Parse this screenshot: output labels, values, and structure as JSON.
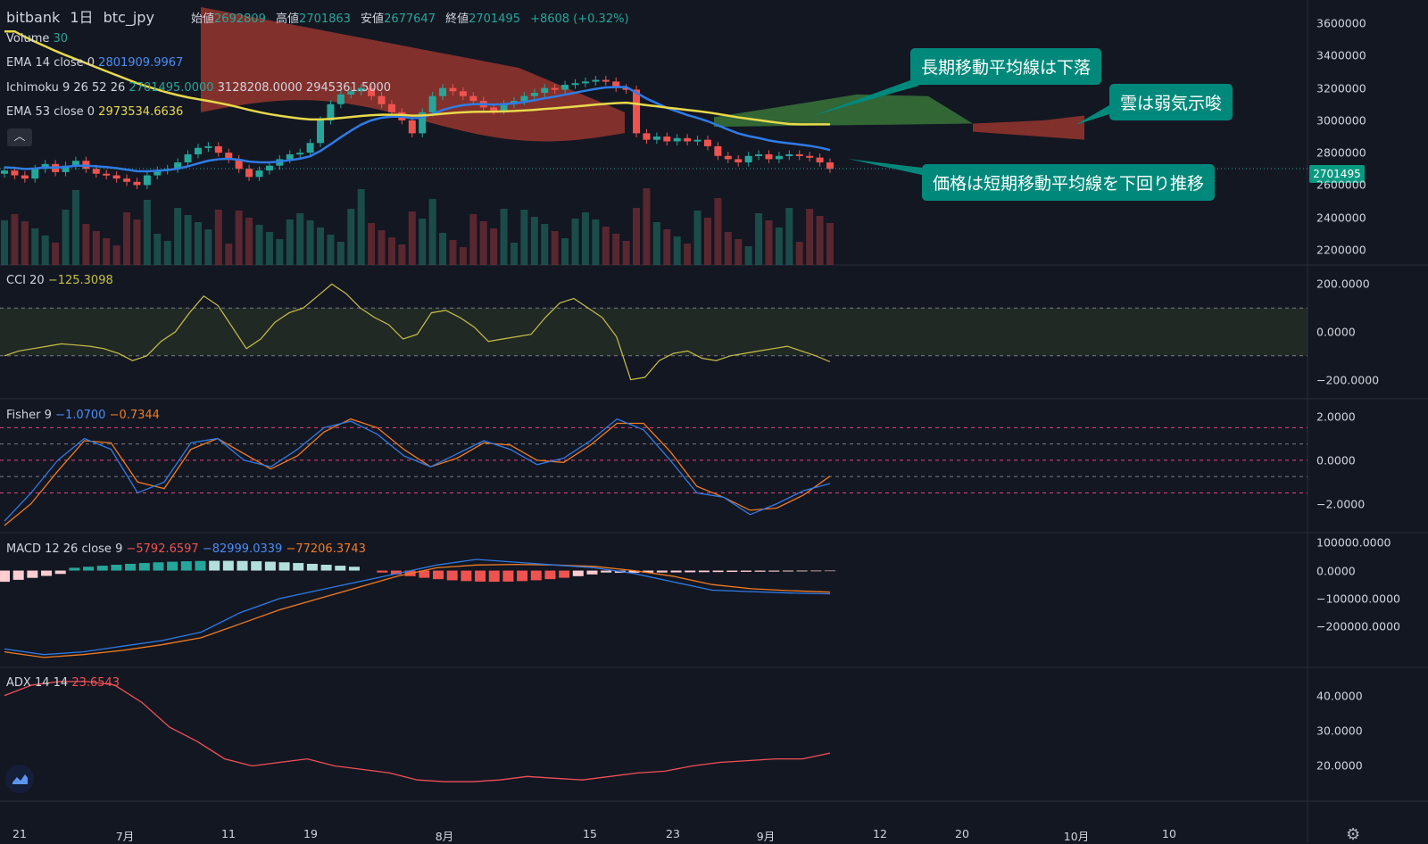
{
  "header": {
    "exchange": "bitbank",
    "interval": "1日",
    "symbol": "btc_jpy",
    "open_label": "始値",
    "open": "2692809",
    "high_label": "高値",
    "high": "2701863",
    "low_label": "安値",
    "low": "2677647",
    "close_label": "終値",
    "close": "2701495",
    "change": "+8608 (+0.32%)"
  },
  "indicators": {
    "volume": {
      "name": "Volume",
      "value": "30"
    },
    "ema14": {
      "name": "EMA 14 close 0",
      "value": "2801909.9967"
    },
    "ichimoku": {
      "name": "Ichimoku 9 26 52 26",
      "v1": "2701495.0000",
      "v2": "3128208.0000",
      "v3": "2945361.5000"
    },
    "ema53": {
      "name": "EMA 53 close 0",
      "value": "2973534.6636"
    },
    "cci": {
      "name": "CCI 20",
      "value": "−125.3098"
    },
    "fisher": {
      "name": "Fisher 9",
      "v1": "−1.0700",
      "v2": "−0.7344"
    },
    "macd": {
      "name": "MACD 12 26 close 9",
      "v1": "−5792.6597",
      "v2": "−82999.0339",
      "v3": "−77206.3743"
    },
    "adx": {
      "name": "ADX 14 14",
      "value": "23.6543"
    }
  },
  "callouts": [
    "長期移動平均線は下落",
    "雲は弱気示唆",
    "価格は短期移動平均線を下回り推移"
  ],
  "price_tag": "2701495",
  "axes": {
    "price": [
      "3600000",
      "3400000",
      "3200000",
      "3000000",
      "2800000",
      "2600000",
      "2400000",
      "2200000"
    ],
    "cci": [
      "200.0000",
      "0.0000",
      "−200.0000"
    ],
    "fisher": [
      "2.0000",
      "0.0000",
      "−2.0000"
    ],
    "macd": [
      "100000.0000",
      "0.0000",
      "−100000.0000",
      "−200000.0000"
    ],
    "adx": [
      "40.0000",
      "30.0000",
      "20.0000"
    ],
    "time": [
      "21",
      "7月",
      "11",
      "19",
      "8月",
      "15",
      "23",
      "9月",
      "12",
      "20",
      "10月",
      "10"
    ]
  },
  "colors": {
    "bg": "#131722",
    "up": "#26a69a",
    "down": "#ef5350",
    "ema14": "#2f7be6",
    "ema53": "#e8d94a",
    "cloud_bear": "#a83a30",
    "cloud_bull": "#3b7a3b",
    "cci": "#c7c046",
    "fisher1": "#2f7be6",
    "fisher2": "#f07c22",
    "adx": "#f05056"
  },
  "chart_data": {
    "type": "line",
    "description_series": "daily BTC/JPY candles with overlays and indicator panes",
    "price_range": [
      2150000,
      3700000
    ],
    "candles_close": [
      2690000,
      2660000,
      2640000,
      2700000,
      2730000,
      2680000,
      2720000,
      2750000,
      2700000,
      2670000,
      2660000,
      2640000,
      2620000,
      2600000,
      2660000,
      2690000,
      2700000,
      2740000,
      2790000,
      2830000,
      2840000,
      2800000,
      2760000,
      2700000,
      2650000,
      2690000,
      2720000,
      2760000,
      2790000,
      2800000,
      2860000,
      3000000,
      3100000,
      3160000,
      3180000,
      3200000,
      3150000,
      3100000,
      3050000,
      3000000,
      2920000,
      3050000,
      3150000,
      3200000,
      3180000,
      3150000,
      3120000,
      3080000,
      3060000,
      3100000,
      3120000,
      3150000,
      3170000,
      3200000,
      3190000,
      3220000,
      3230000,
      3240000,
      3250000,
      3240000,
      3200000,
      3190000,
      2920000,
      2880000,
      2900000,
      2870000,
      2890000,
      2870000,
      2880000,
      2840000,
      2780000,
      2760000,
      2740000,
      2780000,
      2790000,
      2760000,
      2780000,
      2790000,
      2780000,
      2770000,
      2740000,
      2700000
    ],
    "cci_range": [
      -250,
      250
    ],
    "cci": [
      -100,
      -80,
      -70,
      -60,
      -50,
      -55,
      -60,
      -70,
      -90,
      -120,
      -100,
      -40,
      0,
      80,
      150,
      110,
      20,
      -70,
      -30,
      40,
      80,
      100,
      150,
      200,
      160,
      100,
      60,
      30,
      -30,
      -10,
      80,
      90,
      60,
      20,
      -40,
      -30,
      -20,
      -10,
      60,
      120,
      140,
      100,
      60,
      -20,
      -200,
      -190,
      -120,
      -90,
      -80,
      -110,
      -120,
      -100,
      -90,
      -80,
      -70,
      -60,
      -80,
      -100,
      -125
    ],
    "fisher_range": [
      -3,
      2.5
    ],
    "fisher1": [
      -2.8,
      -1.5,
      0,
      1,
      0.5,
      -1.5,
      -1,
      0.8,
      1.0,
      0,
      -0.3,
      0.5,
      1.5,
      1.8,
      1.2,
      0.2,
      -0.3,
      0.3,
      0.9,
      0.5,
      -0.2,
      0.1,
      0.9,
      1.9,
      1.4,
      0,
      -1.5,
      -1.7,
      -2.5,
      -2,
      -1.4,
      -1.07
    ],
    "fisher2": [
      -3,
      -2,
      -0.5,
      0.9,
      0.8,
      -1,
      -1.3,
      0.5,
      1.0,
      0.3,
      -0.4,
      0.2,
      1.3,
      1.9,
      1.5,
      0.5,
      -0.3,
      0.1,
      0.8,
      0.7,
      0,
      -0.1,
      0.7,
      1.7,
      1.7,
      0.4,
      -1.2,
      -1.7,
      -2.3,
      -2.2,
      -1.6,
      -0.73
    ],
    "macd_range": [
      -320000,
      110000
    ],
    "macd": [
      -280000,
      -300000,
      -290000,
      -270000,
      -250000,
      -220000,
      -150000,
      -100000,
      -70000,
      -40000,
      -10000,
      20000,
      40000,
      30000,
      20000,
      10000,
      -10000,
      -40000,
      -70000,
      -75000,
      -80000,
      -83000
    ],
    "macd_signal": [
      -290000,
      -310000,
      -300000,
      -285000,
      -265000,
      -240000,
      -190000,
      -140000,
      -100000,
      -60000,
      -20000,
      10000,
      20000,
      22000,
      20000,
      15000,
      0,
      -20000,
      -50000,
      -65000,
      -72000,
      -77000
    ],
    "adx_range": [
      12,
      46
    ],
    "adx": [
      40,
      43,
      44,
      44,
      43,
      38,
      31,
      27,
      22,
      20,
      21,
      22,
      20,
      19,
      18,
      16,
      15.5,
      15.5,
      16,
      17,
      16.5,
      16,
      17,
      18,
      18.5,
      20,
      21,
      21.5,
      22,
      22,
      23.65
    ]
  }
}
